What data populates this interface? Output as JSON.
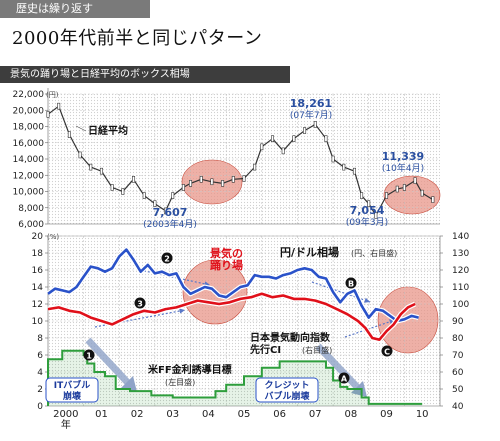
{
  "header": {
    "tag": "歴史は繰り返す",
    "title": "2000年代前半と同じパターン",
    "subtitle": "景気の踊り場と日経平均のボックス相場"
  },
  "colors": {
    "nikkei": "#333333",
    "yen": "#2a52c9",
    "ci": "#e0101a",
    "ff": "#2e9e3c",
    "highlight": "#e8958a"
  },
  "chart_data": [
    {
      "type": "line",
      "name": "nikkei-panel",
      "ylabel": "(円)",
      "ylim": [
        6000,
        22000
      ],
      "yticks": [
        "6,000",
        "8,000",
        "10,000",
        "12,000",
        "14,000",
        "16,000",
        "18,000",
        "20,000",
        "22,000"
      ],
      "series": [
        {
          "name": "日経平均",
          "x": [
            2000.0,
            2000.3,
            2000.6,
            2000.9,
            2001.2,
            2001.5,
            2001.8,
            2002.1,
            2002.4,
            2002.7,
            2003.0,
            2003.3,
            2003.5,
            2003.8,
            2004.0,
            2004.3,
            2004.6,
            2004.9,
            2005.2,
            2005.5,
            2005.8,
            2006.0,
            2006.3,
            2006.6,
            2006.9,
            2007.2,
            2007.5,
            2007.8,
            2008.0,
            2008.3,
            2008.6,
            2008.8,
            2009.0,
            2009.2,
            2009.5,
            2009.8,
            2010.0,
            2010.3,
            2010.5,
            2010.8
          ],
          "values": [
            19500,
            20500,
            17000,
            14500,
            13000,
            12500,
            10500,
            10000,
            11500,
            9500,
            8500,
            7607,
            9500,
            10500,
            11000,
            11500,
            11200,
            11000,
            11500,
            11600,
            13000,
            15500,
            16500,
            15000,
            16500,
            17500,
            18261,
            16500,
            14000,
            13000,
            12500,
            9500,
            8500,
            7054,
            9500,
            10300,
            10500,
            11339,
            9800,
            9000
          ]
        }
      ],
      "annotations": [
        {
          "label": "日経平均"
        },
        {
          "value": "18,261",
          "date": "(07年7月)"
        },
        {
          "value": "11,339",
          "date": "(10年4月)"
        },
        {
          "value": "7,607",
          "date": "(2003年4月)"
        },
        {
          "value": "7,054",
          "date": "(09年3月)"
        }
      ]
    },
    {
      "type": "line",
      "name": "macro-panel",
      "ylabel": "(%)",
      "ylim": [
        0,
        20
      ],
      "yticks": [
        "0",
        "2",
        "4",
        "6",
        "8",
        "10",
        "12",
        "14",
        "16",
        "18",
        "20"
      ],
      "ylabel_right": "",
      "ylim_right": [
        40,
        140
      ],
      "yticks_right": [
        "40",
        "50",
        "60",
        "70",
        "80",
        "90",
        "100",
        "110",
        "120",
        "130",
        "140"
      ],
      "categories": [
        "2000\n年",
        "01",
        "02",
        "03",
        "04",
        "05",
        "06",
        "07",
        "08",
        "09",
        "10"
      ],
      "series": [
        {
          "name": "円/ドル相場",
          "axis": "right",
          "x": [
            2000.0,
            2000.2,
            2000.4,
            2000.6,
            2000.8,
            2001.0,
            2001.2,
            2001.4,
            2001.6,
            2001.8,
            2002.0,
            2002.2,
            2002.4,
            2002.6,
            2002.8,
            2003.0,
            2003.2,
            2003.4,
            2003.6,
            2003.8,
            2004.0,
            2004.2,
            2004.4,
            2004.6,
            2004.8,
            2005.0,
            2005.2,
            2005.4,
            2005.6,
            2005.8,
            2006.0,
            2006.2,
            2006.4,
            2006.6,
            2006.8,
            2007.0,
            2007.2,
            2007.4,
            2007.6,
            2007.8,
            2008.0,
            2008.2,
            2008.4,
            2008.6,
            2008.8,
            2009.0,
            2009.2,
            2009.4,
            2009.6,
            2009.8,
            2010.0,
            2010.2,
            2010.4
          ],
          "values": [
            106,
            109,
            108,
            107,
            110,
            116,
            122,
            121,
            119,
            121,
            128,
            132,
            126,
            119,
            123,
            118,
            119,
            117,
            118,
            110,
            106,
            108,
            110,
            109,
            105,
            104,
            107,
            110,
            111,
            117,
            116,
            116,
            115,
            117,
            118,
            120,
            121,
            120,
            116,
            115,
            107,
            101,
            106,
            108,
            99,
            92,
            97,
            96,
            93,
            90,
            91,
            93,
            92
          ]
        },
        {
          "name": "日本景気動向指数 先行CI",
          "axis": "right",
          "x": [
            2000.0,
            2000.3,
            2000.6,
            2000.9,
            2001.2,
            2001.5,
            2001.8,
            2002.1,
            2002.4,
            2002.7,
            2003.0,
            2003.3,
            2003.6,
            2003.9,
            2004.2,
            2004.5,
            2004.8,
            2005.1,
            2005.4,
            2005.7,
            2006.0,
            2006.3,
            2006.6,
            2006.9,
            2007.2,
            2007.5,
            2007.8,
            2008.1,
            2008.4,
            2008.7,
            2008.9,
            2009.1,
            2009.3,
            2009.5,
            2009.7,
            2009.9,
            2010.1,
            2010.3
          ],
          "values": [
            97,
            98,
            96,
            95,
            92,
            90,
            88,
            91,
            94,
            96,
            95,
            97,
            98,
            100,
            102,
            101,
            100,
            101,
            103,
            104,
            106,
            104,
            105,
            103,
            103,
            102,
            100,
            97,
            94,
            90,
            86,
            80,
            79,
            84,
            88,
            94,
            98,
            100
          ]
        },
        {
          "name": "米FF金利誘導目標",
          "axis": "left",
          "x": [
            2000.0,
            2000.4,
            2000.5,
            2001.0,
            2001.1,
            2001.3,
            2001.6,
            2001.9,
            2002.3,
            2002.9,
            2003.5,
            2004.5,
            2004.7,
            2005.0,
            2005.5,
            2006.0,
            2006.5,
            2007.6,
            2007.8,
            2008.0,
            2008.2,
            2008.4,
            2008.8,
            2009.0,
            2010.5
          ],
          "values": [
            5.5,
            6.5,
            6.5,
            6.0,
            5.0,
            4.0,
            3.5,
            2.0,
            1.75,
            1.25,
            1.0,
            1.0,
            1.75,
            2.5,
            3.5,
            4.5,
            5.25,
            5.25,
            4.5,
            3.0,
            2.25,
            2.0,
            1.0,
            0.25,
            0.25
          ]
        }
      ],
      "annotations": [
        {
          "label": "景気の\n踊り場"
        },
        {
          "label": "円/ドル相場",
          "note": "(円、右目盛)"
        },
        {
          "label": "日本景気動向指数\n先行CI",
          "note": "(右目盛)"
        },
        {
          "label": "米FF金利誘導目標",
          "note": "(左目盛)"
        },
        {
          "label": "ITバブル\n崩壊"
        },
        {
          "label": "クレジット\nバブル崩壊"
        },
        {
          "markers": [
            "❶",
            "❷",
            "❸",
            "A",
            "B",
            "C"
          ]
        }
      ]
    }
  ]
}
